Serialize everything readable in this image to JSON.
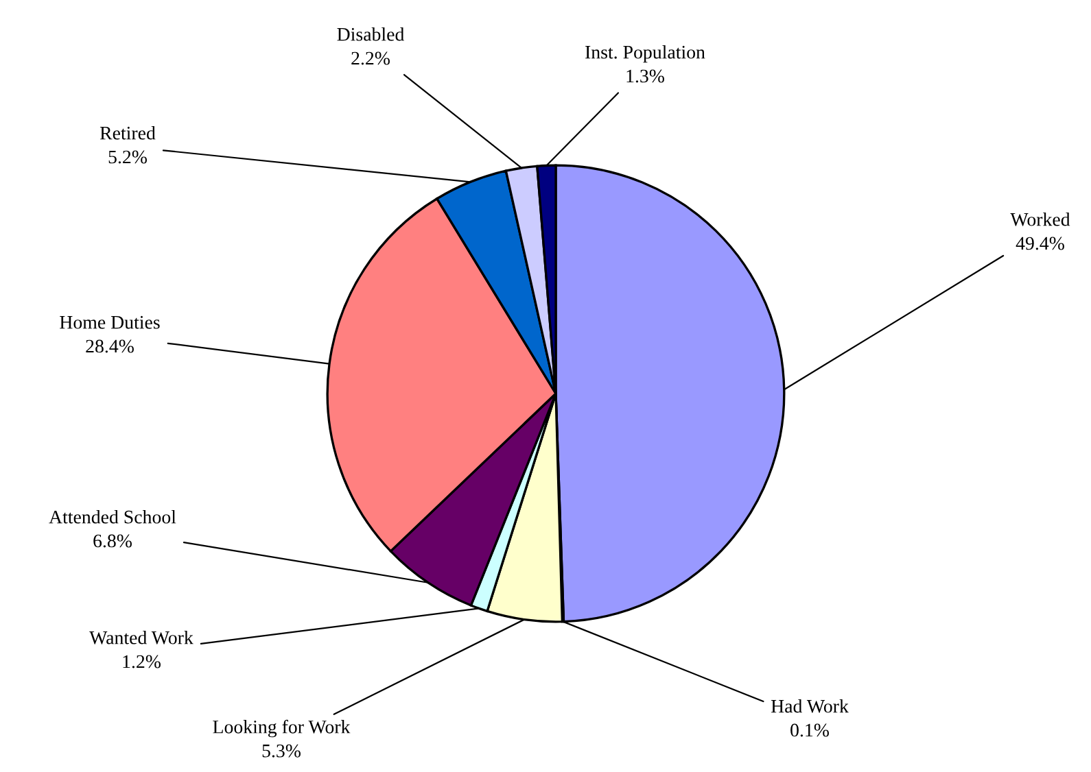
{
  "chart_data": {
    "type": "pie",
    "categories": [
      "Worked",
      "Had Work",
      "Looking for Work",
      "Wanted Work",
      "Attended School",
      "Home Duties",
      "Retired",
      "Disabled",
      "Inst. Population"
    ],
    "values": [
      49.4,
      0.1,
      5.3,
      1.2,
      6.8,
      28.4,
      5.2,
      2.2,
      1.3
    ],
    "colors": [
      "#9999ff",
      "#993366",
      "#ffffcc",
      "#ccffff",
      "#660066",
      "#ff8080",
      "#0066cc",
      "#ccccff",
      "#000080"
    ],
    "value_labels": [
      "49.4%",
      "0.1%",
      "5.3%",
      "1.2%",
      "6.8%",
      "28.4%",
      "5.2%",
      "2.2%",
      "1.3%"
    ],
    "legend": false
  }
}
